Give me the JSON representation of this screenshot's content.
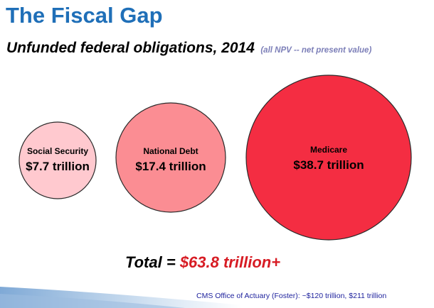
{
  "slide": {
    "title": "The Fiscal Gap",
    "subtitle": "Unfunded federal obligations,  2014",
    "subtitle_note": "(all NPV -- net present value)"
  },
  "bubbles": [
    {
      "name": "Social Security",
      "value_text": "$7.7 trillion",
      "color": "#ffc9cf"
    },
    {
      "name": "National Debt",
      "value_text": "$17.4 trillion",
      "color": "#fb8d93"
    },
    {
      "name": "Medicare",
      "value_text": "$38.7 trillion",
      "color": "#f42d42"
    }
  ],
  "total": {
    "label": "Total = ",
    "value": "$63.8 trillion+"
  },
  "source_note": "CMS Office of Actuary (Foster):  ~$120 trillion, $211 trillion",
  "colors": {
    "title_blue": "#1f6fb8",
    "total_red": "#d71c24",
    "note_purple": "#7c7fb8",
    "source_blue": "#1b1f9c"
  }
}
